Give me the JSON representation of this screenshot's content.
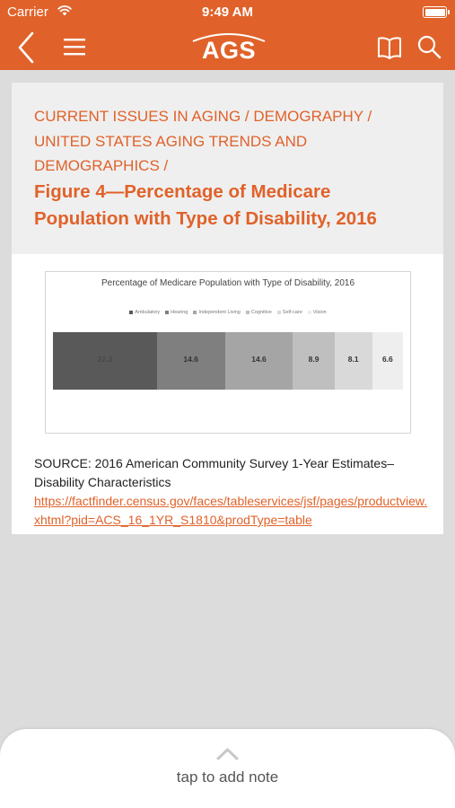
{
  "status_bar": {
    "carrier": "Carrier",
    "time": "9:49 AM"
  },
  "nav": {
    "logo_text": "AGS",
    "icons": [
      "back-chevron-icon",
      "menu-icon",
      "book-icon",
      "search-icon"
    ]
  },
  "breadcrumb": "CURRENT ISSUES IN AGING / DEMOGRAPHY / UNITED STATES AGING TRENDS AND DEMOGRAPHICS /",
  "figure_title": "Figure 4—Percentage of Medicare Population with Type of Disability, 2016",
  "chart_data": {
    "type": "bar",
    "orientation": "horizontal-stacked",
    "title": "Percentage of Medicare Population with Type of Disability, 2016",
    "legend_position": "top",
    "series": [
      {
        "name": "Ambulatory",
        "value": 22.3,
        "label": "22.3",
        "color": "#595959"
      },
      {
        "name": "Hearing",
        "value": 14.6,
        "label": "14.6",
        "color": "#7f7f7f"
      },
      {
        "name": "Independent Living",
        "value": 14.6,
        "label": "14.6",
        "color": "#a5a5a5"
      },
      {
        "name": "Cognitive",
        "value": 8.9,
        "label": "8.9",
        "color": "#bfbfbf"
      },
      {
        "name": "Self-care",
        "value": 8.1,
        "label": "8.1",
        "color": "#d9d9d9"
      },
      {
        "name": "Vision",
        "value": 6.6,
        "label": "6.6",
        "color": "#eeeeee"
      }
    ]
  },
  "source_text": "SOURCE: 2016 American Community Survey 1-Year Estimates–Disability Characteristics",
  "source_link": "https://factfinder.census.gov/faces/tableservices/jsf/pages/productview.xhtml?pid=ACS_16_1YR_S1810&prodType=table",
  "note_panel": {
    "label": "tap to add note"
  },
  "colors": {
    "accent": "#e0622a",
    "background": "#dcdcdc",
    "header_bg": "#efefef"
  }
}
